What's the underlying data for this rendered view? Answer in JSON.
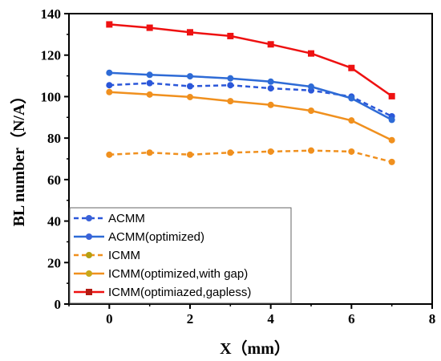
{
  "chart_data": {
    "type": "line",
    "xlabel": "X（mm）",
    "ylabel": "BL number（N/A）",
    "xlim": [
      -1,
      8
    ],
    "ylim": [
      0,
      140
    ],
    "xticks": [
      "0",
      "2",
      "4",
      "6",
      "8"
    ],
    "yticks": [
      "0",
      "20",
      "40",
      "60",
      "80",
      "100",
      "120",
      "140"
    ],
    "grid": false,
    "legend_position": "bottom-left",
    "x": [
      0,
      1,
      2,
      3,
      4,
      5,
      6,
      7
    ],
    "series": [
      {
        "name": "ACMM",
        "values": [
          105.5,
          106.5,
          105,
          105.5,
          104,
          103,
          100,
          90.5
        ],
        "color": "#2b57d9",
        "dash": true,
        "marker": "circle"
      },
      {
        "name": "ACMM(optimized)",
        "values": [
          111.5,
          110.5,
          109.8,
          108.8,
          107.2,
          104.8,
          99.2,
          88.8
        ],
        "color": "#2e6bd6",
        "dash": false,
        "marker": "circle"
      },
      {
        "name": "ICMM",
        "values": [
          72,
          73,
          72,
          73,
          73.5,
          74,
          73.5,
          68.5
        ],
        "color": "#f0901e",
        "dash": true,
        "marker": "circle"
      },
      {
        "name": "ICMM(optimized,with gap)",
        "values": [
          102.2,
          101,
          99.8,
          97.8,
          96,
          93.2,
          88.5,
          79
        ],
        "color": "#f0901e",
        "dash": false,
        "marker": "circle"
      },
      {
        "name": "ICMM(optimiazed,gapless)",
        "values": [
          134.8,
          133.2,
          131,
          129.2,
          125.2,
          120.8,
          113.8,
          100.2
        ],
        "color": "#ee1111",
        "dash": false,
        "marker": "square"
      }
    ],
    "legend_marker_colors": [
      "#3a62d8",
      "#3a62d8",
      "#b5a012",
      "#c8a81a",
      "#b31a12"
    ]
  }
}
